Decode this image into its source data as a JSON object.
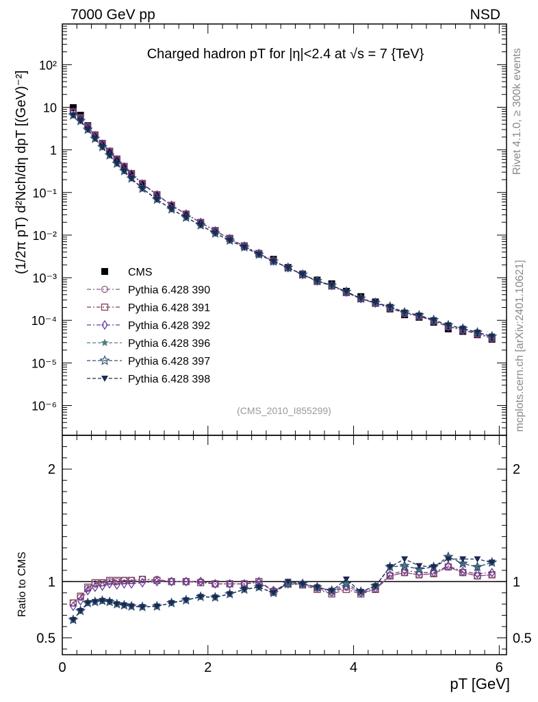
{
  "header": {
    "left": "7000 GeV pp",
    "right": "NSD"
  },
  "side_text": {
    "rivet": "Rivet 4.1.0, ≥ 300k events",
    "mcplots": "mcplots.cern.ch [arXiv:2401.10621]"
  },
  "analysis_id": "(CMS_2010_I855299)",
  "colors": {
    "cms": "#000000",
    "p390": "#8b5a8b",
    "p391": "#7e3f5e",
    "p392": "#6a3a9a",
    "p396": "#4f7f7f",
    "p397": "#2f4f6f",
    "p398": "#1a2a55"
  },
  "chart_data": [
    {
      "type": "scatter",
      "panel": "main",
      "title": "Charged hadron pT for |η|<2.4 at √s = 7 {TeV}",
      "ylabel": "(1/2π pT) d²Nch/dη dpT [(GeV)⁻²]",
      "yscale": "log",
      "xlim": [
        0,
        6.1
      ],
      "ylim": [
        2e-07,
        900
      ],
      "ytick_labels": [
        "10²",
        "10",
        "1",
        "10⁻¹",
        "10⁻²",
        "10⁻³",
        "10⁻⁴",
        "10⁻⁵",
        "10⁻⁶"
      ],
      "legend_position": "middle-left",
      "x": [
        0.15,
        0.25,
        0.35,
        0.45,
        0.55,
        0.65,
        0.75,
        0.85,
        0.95,
        1.1,
        1.3,
        1.5,
        1.7,
        1.9,
        2.1,
        2.3,
        2.5,
        2.7,
        2.9,
        3.1,
        3.3,
        3.5,
        3.7,
        3.9,
        4.1,
        4.3,
        4.5,
        4.7,
        4.9,
        5.1,
        5.3,
        5.5,
        5.7,
        5.9
      ],
      "series": [
        {
          "name": "CMS",
          "marker": "filled-square",
          "values": [
            9.8,
            6.5,
            3.7,
            2.25,
            1.42,
            0.92,
            0.6,
            0.405,
            0.275,
            0.16,
            0.088,
            0.05,
            0.031,
            0.0198,
            0.0128,
            0.0084,
            0.0056,
            0.0037,
            0.0027,
            0.00175,
            0.00122,
            0.00088,
            0.00072,
            0.00048,
            0.00036,
            0.00027,
            0.000185,
            0.000135,
            0.000118,
            9e-05,
            6.3e-05,
            5.5e-05,
            4.6e-05,
            3.6e-05
          ]
        },
        {
          "name": "Pythia 6.428 390",
          "marker": "open-circle",
          "line": "dash-dot",
          "values": [
            7.9,
            5.6,
            3.47,
            2.2,
            1.41,
            0.92,
            0.6,
            0.41,
            0.28,
            0.163,
            0.0897,
            0.0501,
            0.031,
            0.0198,
            0.0125,
            0.0082,
            0.0055,
            0.0037,
            0.00247,
            0.00171,
            0.00119,
            0.00083,
            0.00065,
            0.000456,
            0.00032,
            0.000251,
            0.000194,
            0.000146,
            0.000125,
            9.6e-05,
            7.1e-05,
            5.9e-05,
            4.8e-05,
            3.8e-05
          ]
        },
        {
          "name": "Pythia 6.428 391",
          "marker": "open-square",
          "line": "dash-dot",
          "values": [
            7.9,
            5.7,
            3.52,
            2.22,
            1.41,
            0.93,
            0.61,
            0.41,
            0.278,
            0.163,
            0.089,
            0.05,
            0.031,
            0.0198,
            0.0126,
            0.0083,
            0.0055,
            0.0037,
            0.00247,
            0.00171,
            0.00118,
            0.00082,
            0.00064,
            0.000447,
            0.00032,
            0.000251,
            0.000194,
            0.000146,
            0.000125,
            9.6e-05,
            7.1e-05,
            5.9e-05,
            4.8e-05,
            3.8e-05
          ]
        },
        {
          "name": "Pythia 6.428 392",
          "marker": "open-diamond",
          "line": "dash-dot",
          "values": [
            7.6,
            5.4,
            3.4,
            2.13,
            1.36,
            0.9,
            0.58,
            0.395,
            0.27,
            0.158,
            0.087,
            0.05,
            0.031,
            0.0198,
            0.0125,
            0.0082,
            0.0055,
            0.0037,
            0.00248,
            0.00172,
            0.00119,
            0.00084,
            0.00066,
            0.00046,
            0.000324,
            0.000254,
            0.000196,
            0.000148,
            0.000127,
            9.7e-05,
            7.2e-05,
            6e-05,
            4.9e-05,
            3.9e-05
          ]
        },
        {
          "name": "Pythia 6.428 396",
          "marker": "filled-star",
          "line": "dashed",
          "values": [
            6.5,
            4.8,
            3.0,
            1.84,
            1.17,
            0.75,
            0.48,
            0.32,
            0.215,
            0.124,
            0.0685,
            0.0405,
            0.0259,
            0.0171,
            0.011,
            0.0075,
            0.0052,
            0.0035,
            0.00242,
            0.00172,
            0.00119,
            0.00084,
            0.00066,
            0.00047,
            0.000327,
            0.000259,
            0.000209,
            0.000154,
            0.000131,
            0.000102,
            7.7e-05,
            6.4e-05,
            5.2e-05,
            4.2e-05
          ]
        },
        {
          "name": "Pythia 6.428 397",
          "marker": "open-star",
          "line": "dashed",
          "values": [
            6.5,
            4.8,
            3.0,
            1.84,
            1.17,
            0.75,
            0.48,
            0.32,
            0.215,
            0.124,
            0.0685,
            0.0405,
            0.0259,
            0.0171,
            0.011,
            0.0075,
            0.0052,
            0.0035,
            0.00242,
            0.00172,
            0.00119,
            0.00084,
            0.00066,
            0.00047,
            0.000327,
            0.000259,
            0.000209,
            0.000154,
            0.000131,
            0.000102,
            7.7e-05,
            6.4e-05,
            5.2e-05,
            4.2e-05
          ]
        },
        {
          "name": "Pythia 6.428 398",
          "marker": "filled-triangle-down",
          "line": "dashed",
          "values": [
            6.5,
            4.8,
            3.0,
            1.84,
            1.17,
            0.75,
            0.48,
            0.32,
            0.215,
            0.124,
            0.0685,
            0.0405,
            0.0259,
            0.0171,
            0.011,
            0.0075,
            0.0052,
            0.0035,
            0.00242,
            0.00172,
            0.00119,
            0.00084,
            0.00066,
            0.00047,
            0.000327,
            0.000259,
            0.000209,
            0.000154,
            0.000131,
            0.000102,
            7.7e-05,
            6.4e-05,
            5.2e-05,
            4.2e-05
          ]
        }
      ]
    },
    {
      "type": "line",
      "panel": "ratio",
      "ylabel": "Ratio to CMS",
      "xlabel": "pT [GeV]",
      "xlim": [
        0,
        6.1
      ],
      "ylim": [
        0.35,
        2.3
      ],
      "xticks": [
        0,
        2,
        4,
        6
      ],
      "xtick_labels": [
        "0",
        "2",
        "4",
        "6"
      ],
      "yticks": [
        0.5,
        1,
        2
      ],
      "ytick_labels": [
        "0.5",
        "1",
        "2"
      ],
      "reference_line": 1,
      "x": [
        0.15,
        0.25,
        0.35,
        0.45,
        0.55,
        0.65,
        0.75,
        0.85,
        0.95,
        1.1,
        1.3,
        1.5,
        1.7,
        1.9,
        2.1,
        2.3,
        2.5,
        2.7,
        2.9,
        3.1,
        3.3,
        3.5,
        3.7,
        3.9,
        4.1,
        4.3,
        4.5,
        4.7,
        4.9,
        5.1,
        5.3,
        5.5,
        5.7,
        5.9
      ],
      "series": [
        {
          "name": "Pythia 6.428 390",
          "values": [
            0.81,
            0.86,
            0.94,
            0.98,
            0.99,
            1.0,
            1.0,
            1.01,
            1.01,
            1.02,
            1.02,
            1.0,
            1.0,
            1.0,
            0.98,
            0.98,
            0.98,
            0.99,
            0.92,
            0.98,
            0.98,
            0.94,
            0.9,
            0.95,
            0.9,
            0.93,
            1.05,
            1.08,
            1.06,
            1.07,
            1.13,
            1.08,
            1.05,
            1.06
          ]
        },
        {
          "name": "Pythia 6.428 391",
          "values": [
            0.81,
            0.87,
            0.95,
            0.99,
            0.99,
            1.01,
            1.01,
            1.01,
            1.01,
            1.02,
            1.01,
            1.0,
            1.0,
            0.99,
            0.98,
            0.98,
            0.98,
            1.0,
            0.91,
            0.98,
            0.97,
            0.93,
            0.89,
            0.93,
            0.89,
            0.93,
            1.05,
            1.08,
            1.06,
            1.07,
            1.13,
            1.08,
            1.05,
            1.06
          ]
        },
        {
          "name": "Pythia 6.428 392",
          "values": [
            0.78,
            0.83,
            0.92,
            0.95,
            0.96,
            0.98,
            0.97,
            0.98,
            0.98,
            0.99,
            1.0,
            1.0,
            1.0,
            1.0,
            0.98,
            0.98,
            0.98,
            1.0,
            0.92,
            0.98,
            0.98,
            0.95,
            0.91,
            0.96,
            0.9,
            0.94,
            1.06,
            1.1,
            1.08,
            1.08,
            1.14,
            1.09,
            1.07,
            1.08
          ]
        },
        {
          "name": "Pythia 6.428 396",
          "values": [
            0.66,
            0.74,
            0.81,
            0.82,
            0.83,
            0.82,
            0.8,
            0.79,
            0.78,
            0.775,
            0.78,
            0.81,
            0.835,
            0.865,
            0.86,
            0.89,
            0.93,
            0.95,
            0.9,
            0.98,
            0.98,
            0.95,
            0.92,
            0.98,
            0.91,
            0.96,
            1.13,
            1.14,
            1.11,
            1.13,
            1.22,
            1.16,
            1.13,
            1.17
          ]
        },
        {
          "name": "Pythia 6.428 397",
          "values": [
            0.66,
            0.74,
            0.81,
            0.82,
            0.83,
            0.82,
            0.8,
            0.79,
            0.78,
            0.775,
            0.78,
            0.81,
            0.835,
            0.865,
            0.86,
            0.89,
            0.93,
            0.95,
            0.9,
            0.98,
            0.98,
            0.95,
            0.92,
            0.98,
            0.91,
            0.96,
            1.13,
            1.14,
            1.11,
            1.13,
            1.22,
            1.16,
            1.13,
            1.17
          ]
        },
        {
          "name": "Pythia 6.428 398",
          "values": [
            0.66,
            0.74,
            0.81,
            0.82,
            0.83,
            0.82,
            0.8,
            0.79,
            0.78,
            0.775,
            0.78,
            0.81,
            0.835,
            0.865,
            0.86,
            0.89,
            0.93,
            0.95,
            0.9,
            1.0,
            0.98,
            0.95,
            0.92,
            1.02,
            0.91,
            0.96,
            1.13,
            1.2,
            1.14,
            1.13,
            1.2,
            1.2,
            1.2,
            1.17
          ]
        }
      ]
    }
  ]
}
